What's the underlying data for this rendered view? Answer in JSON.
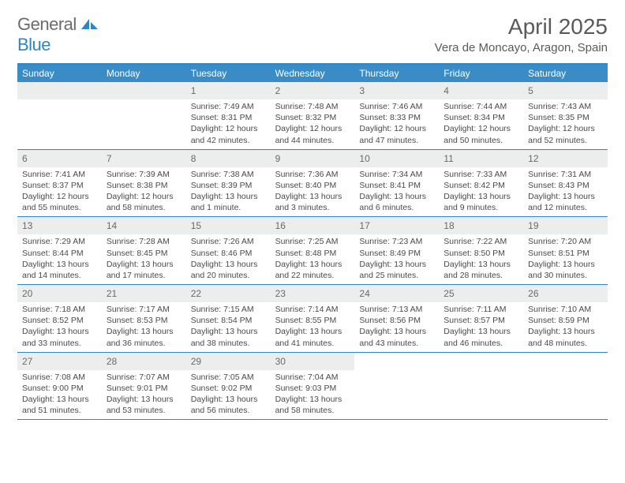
{
  "logo": {
    "general": "General",
    "blue": "Blue"
  },
  "title": "April 2025",
  "location": "Vera de Moncayo, Aragon, Spain",
  "colors": {
    "header_bg": "#3a8cc7",
    "border": "#2f86c5",
    "daynum_bg": "#eceded",
    "text": "#4a4a4a",
    "title_text": "#5a5a5a"
  },
  "days_of_week": [
    "Sunday",
    "Monday",
    "Tuesday",
    "Wednesday",
    "Thursday",
    "Friday",
    "Saturday"
  ],
  "weeks": [
    [
      null,
      null,
      {
        "n": "1",
        "sr": "Sunrise: 7:49 AM",
        "ss": "Sunset: 8:31 PM",
        "dl": "Daylight: 12 hours and 42 minutes."
      },
      {
        "n": "2",
        "sr": "Sunrise: 7:48 AM",
        "ss": "Sunset: 8:32 PM",
        "dl": "Daylight: 12 hours and 44 minutes."
      },
      {
        "n": "3",
        "sr": "Sunrise: 7:46 AM",
        "ss": "Sunset: 8:33 PM",
        "dl": "Daylight: 12 hours and 47 minutes."
      },
      {
        "n": "4",
        "sr": "Sunrise: 7:44 AM",
        "ss": "Sunset: 8:34 PM",
        "dl": "Daylight: 12 hours and 50 minutes."
      },
      {
        "n": "5",
        "sr": "Sunrise: 7:43 AM",
        "ss": "Sunset: 8:35 PM",
        "dl": "Daylight: 12 hours and 52 minutes."
      }
    ],
    [
      {
        "n": "6",
        "sr": "Sunrise: 7:41 AM",
        "ss": "Sunset: 8:37 PM",
        "dl": "Daylight: 12 hours and 55 minutes."
      },
      {
        "n": "7",
        "sr": "Sunrise: 7:39 AM",
        "ss": "Sunset: 8:38 PM",
        "dl": "Daylight: 12 hours and 58 minutes."
      },
      {
        "n": "8",
        "sr": "Sunrise: 7:38 AM",
        "ss": "Sunset: 8:39 PM",
        "dl": "Daylight: 13 hours and 1 minute."
      },
      {
        "n": "9",
        "sr": "Sunrise: 7:36 AM",
        "ss": "Sunset: 8:40 PM",
        "dl": "Daylight: 13 hours and 3 minutes."
      },
      {
        "n": "10",
        "sr": "Sunrise: 7:34 AM",
        "ss": "Sunset: 8:41 PM",
        "dl": "Daylight: 13 hours and 6 minutes."
      },
      {
        "n": "11",
        "sr": "Sunrise: 7:33 AM",
        "ss": "Sunset: 8:42 PM",
        "dl": "Daylight: 13 hours and 9 minutes."
      },
      {
        "n": "12",
        "sr": "Sunrise: 7:31 AM",
        "ss": "Sunset: 8:43 PM",
        "dl": "Daylight: 13 hours and 12 minutes."
      }
    ],
    [
      {
        "n": "13",
        "sr": "Sunrise: 7:29 AM",
        "ss": "Sunset: 8:44 PM",
        "dl": "Daylight: 13 hours and 14 minutes."
      },
      {
        "n": "14",
        "sr": "Sunrise: 7:28 AM",
        "ss": "Sunset: 8:45 PM",
        "dl": "Daylight: 13 hours and 17 minutes."
      },
      {
        "n": "15",
        "sr": "Sunrise: 7:26 AM",
        "ss": "Sunset: 8:46 PM",
        "dl": "Daylight: 13 hours and 20 minutes."
      },
      {
        "n": "16",
        "sr": "Sunrise: 7:25 AM",
        "ss": "Sunset: 8:48 PM",
        "dl": "Daylight: 13 hours and 22 minutes."
      },
      {
        "n": "17",
        "sr": "Sunrise: 7:23 AM",
        "ss": "Sunset: 8:49 PM",
        "dl": "Daylight: 13 hours and 25 minutes."
      },
      {
        "n": "18",
        "sr": "Sunrise: 7:22 AM",
        "ss": "Sunset: 8:50 PM",
        "dl": "Daylight: 13 hours and 28 minutes."
      },
      {
        "n": "19",
        "sr": "Sunrise: 7:20 AM",
        "ss": "Sunset: 8:51 PM",
        "dl": "Daylight: 13 hours and 30 minutes."
      }
    ],
    [
      {
        "n": "20",
        "sr": "Sunrise: 7:18 AM",
        "ss": "Sunset: 8:52 PM",
        "dl": "Daylight: 13 hours and 33 minutes."
      },
      {
        "n": "21",
        "sr": "Sunrise: 7:17 AM",
        "ss": "Sunset: 8:53 PM",
        "dl": "Daylight: 13 hours and 36 minutes."
      },
      {
        "n": "22",
        "sr": "Sunrise: 7:15 AM",
        "ss": "Sunset: 8:54 PM",
        "dl": "Daylight: 13 hours and 38 minutes."
      },
      {
        "n": "23",
        "sr": "Sunrise: 7:14 AM",
        "ss": "Sunset: 8:55 PM",
        "dl": "Daylight: 13 hours and 41 minutes."
      },
      {
        "n": "24",
        "sr": "Sunrise: 7:13 AM",
        "ss": "Sunset: 8:56 PM",
        "dl": "Daylight: 13 hours and 43 minutes."
      },
      {
        "n": "25",
        "sr": "Sunrise: 7:11 AM",
        "ss": "Sunset: 8:57 PM",
        "dl": "Daylight: 13 hours and 46 minutes."
      },
      {
        "n": "26",
        "sr": "Sunrise: 7:10 AM",
        "ss": "Sunset: 8:59 PM",
        "dl": "Daylight: 13 hours and 48 minutes."
      }
    ],
    [
      {
        "n": "27",
        "sr": "Sunrise: 7:08 AM",
        "ss": "Sunset: 9:00 PM",
        "dl": "Daylight: 13 hours and 51 minutes."
      },
      {
        "n": "28",
        "sr": "Sunrise: 7:07 AM",
        "ss": "Sunset: 9:01 PM",
        "dl": "Daylight: 13 hours and 53 minutes."
      },
      {
        "n": "29",
        "sr": "Sunrise: 7:05 AM",
        "ss": "Sunset: 9:02 PM",
        "dl": "Daylight: 13 hours and 56 minutes."
      },
      {
        "n": "30",
        "sr": "Sunrise: 7:04 AM",
        "ss": "Sunset: 9:03 PM",
        "dl": "Daylight: 13 hours and 58 minutes."
      },
      null,
      null,
      null
    ]
  ]
}
